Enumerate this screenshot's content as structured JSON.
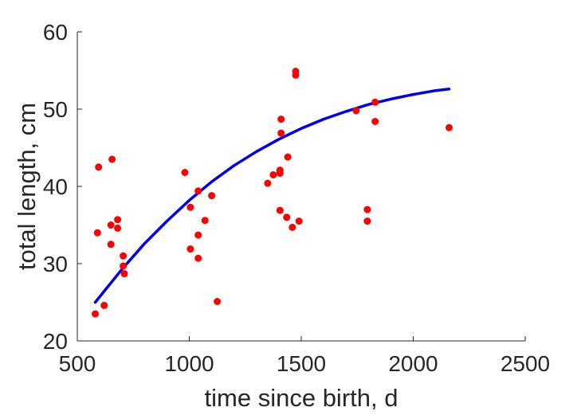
{
  "chart_data": {
    "type": "scatter",
    "xlabel": "time since birth, d",
    "ylabel": "total length, cm",
    "xlim": [
      500,
      2500
    ],
    "ylim": [
      20,
      60
    ],
    "xticks": [
      500,
      1000,
      1500,
      2000,
      2500
    ],
    "yticks": [
      20,
      30,
      40,
      50,
      60
    ],
    "grid": false,
    "legend": "none",
    "series": [
      {
        "type": "scatter",
        "color": "#ff0000",
        "points": [
          [
            580,
            23.5
          ],
          [
            590,
            34.0
          ],
          [
            595,
            42.5
          ],
          [
            620,
            24.6
          ],
          [
            650,
            32.5
          ],
          [
            650,
            35.0
          ],
          [
            655,
            43.5
          ],
          [
            680,
            34.6
          ],
          [
            680,
            35.7
          ],
          [
            705,
            31.0
          ],
          [
            705,
            29.7
          ],
          [
            710,
            28.7
          ],
          [
            980,
            41.8
          ],
          [
            1005,
            37.3
          ],
          [
            1005,
            31.9
          ],
          [
            1040,
            39.4
          ],
          [
            1040,
            33.7
          ],
          [
            1040,
            30.7
          ],
          [
            1070,
            35.6
          ],
          [
            1100,
            38.8
          ],
          [
            1125,
            25.1
          ],
          [
            1350,
            40.4
          ],
          [
            1375,
            41.5
          ],
          [
            1405,
            36.9
          ],
          [
            1405,
            42.1
          ],
          [
            1405,
            41.7
          ],
          [
            1410,
            46.9
          ],
          [
            1410,
            48.7
          ],
          [
            1435,
            36.0
          ],
          [
            1440,
            43.8
          ],
          [
            1460,
            34.7
          ],
          [
            1475,
            54.9
          ],
          [
            1475,
            54.4
          ],
          [
            1490,
            35.5
          ],
          [
            1745,
            49.8
          ],
          [
            1795,
            37.0
          ],
          [
            1795,
            35.5
          ],
          [
            1830,
            48.4
          ],
          [
            1830,
            50.9
          ],
          [
            2160,
            47.6
          ]
        ]
      },
      {
        "type": "line",
        "color": "#0000ee",
        "points": [
          [
            580,
            25.0
          ],
          [
            700,
            29.3
          ],
          [
            800,
            32.6
          ],
          [
            900,
            35.5
          ],
          [
            1000,
            38.2
          ],
          [
            1100,
            40.6
          ],
          [
            1200,
            42.7
          ],
          [
            1300,
            44.5
          ],
          [
            1400,
            46.1
          ],
          [
            1500,
            47.5
          ],
          [
            1600,
            48.7
          ],
          [
            1700,
            49.7
          ],
          [
            1800,
            50.6
          ],
          [
            1900,
            51.3
          ],
          [
            2000,
            51.9
          ],
          [
            2100,
            52.4
          ],
          [
            2160,
            52.6
          ]
        ]
      }
    ]
  }
}
